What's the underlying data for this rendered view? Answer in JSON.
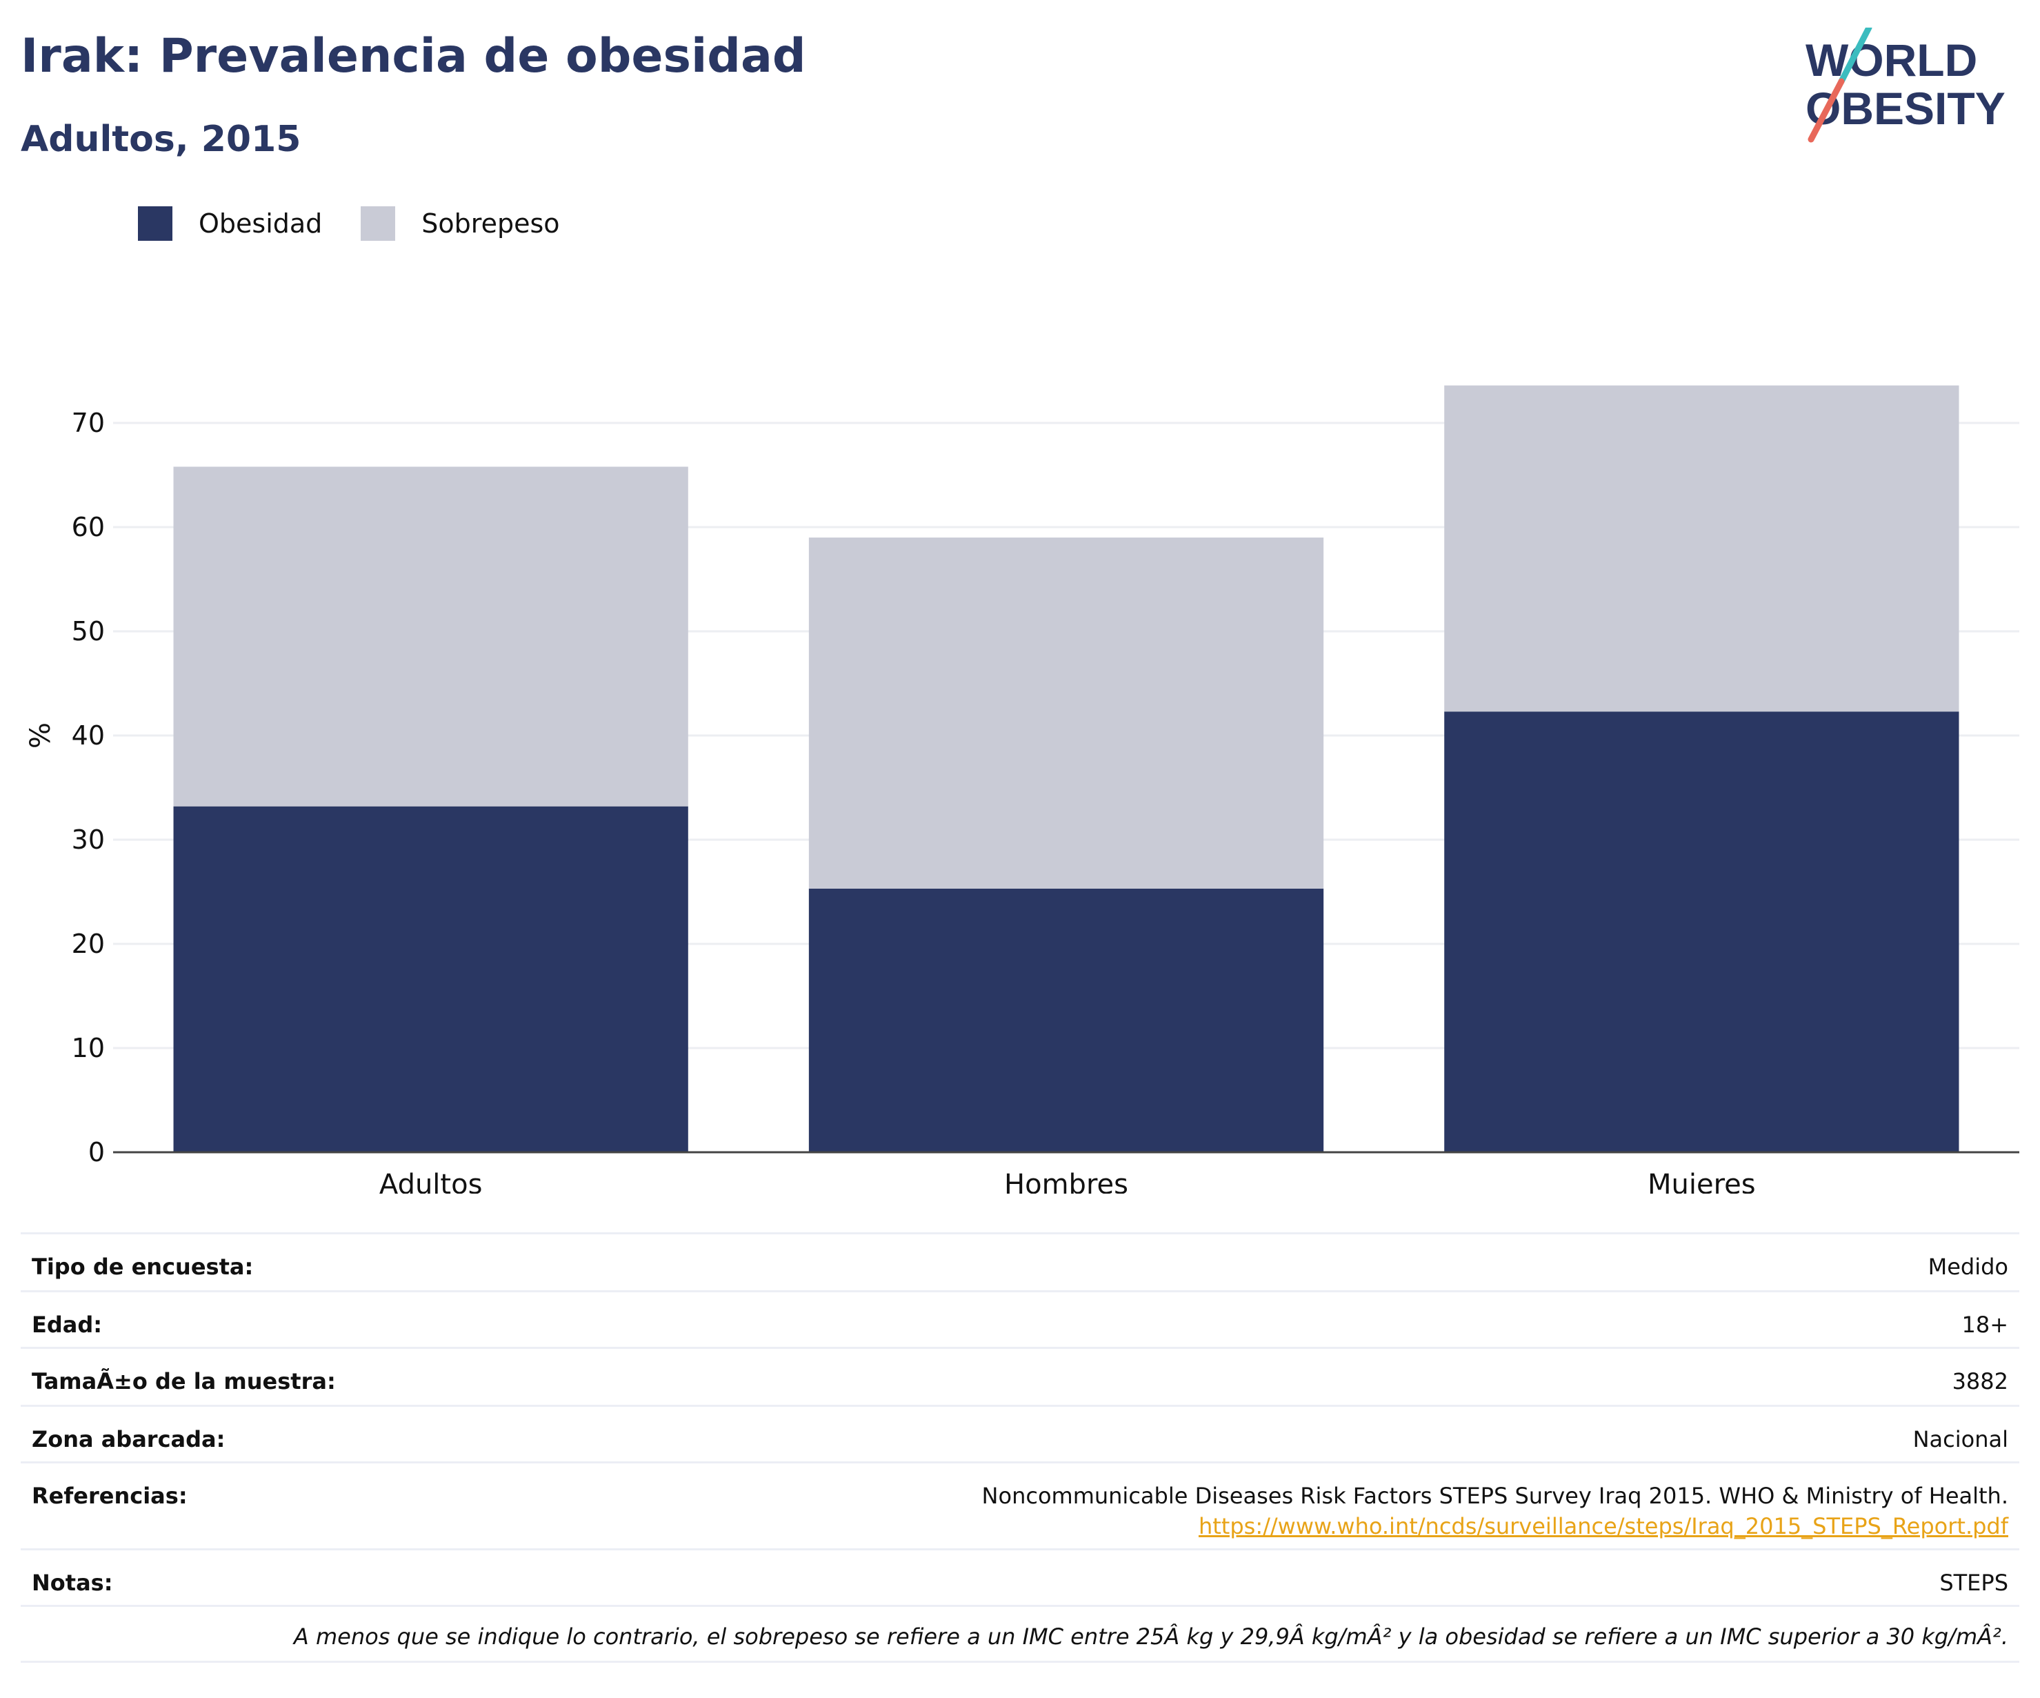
{
  "title": "Irak: Prevalencia de obesidad",
  "subtitle": "Adultos, 2015",
  "logo": {
    "line1": "WORLD",
    "line2": "OBESITY"
  },
  "colors": {
    "obesity": "#2a3763",
    "overweight": "#c9cbd6",
    "title": "#2a3763",
    "link": "#e8a317",
    "logo_teal": "#3bbcbf",
    "logo_red": "#e8685a"
  },
  "legend": [
    {
      "label": "Obesidad",
      "color": "#2a3763"
    },
    {
      "label": "Sobrepeso",
      "color": "#c9cbd6"
    }
  ],
  "chart_data": {
    "type": "bar",
    "stacked": true,
    "categories": [
      "Adultos",
      "Hombres",
      "Mujeres"
    ],
    "series": [
      {
        "name": "Obesidad",
        "values": [
          33.2,
          25.3,
          42.3
        ]
      },
      {
        "name": "Sobrepeso",
        "values": [
          32.6,
          33.7,
          31.3
        ]
      }
    ],
    "ylabel": "%",
    "yticks": [
      0,
      10,
      20,
      30,
      40,
      50,
      60,
      70
    ],
    "ylim": [
      0,
      74
    ],
    "grid": true,
    "legend_position": "top-left"
  },
  "info": {
    "rows": [
      {
        "label": "Tipo de encuesta:",
        "value": "Medido"
      },
      {
        "label": "Edad:",
        "value": "18+"
      },
      {
        "label": "TamaÃ±o de la muestra:",
        "value": "3882"
      },
      {
        "label": "Zona abarcada:",
        "value": "Nacional"
      }
    ],
    "references_label": "Referencias:",
    "references_text": "Noncommunicable Diseases Risk Factors STEPS Survey Iraq 2015. WHO & Ministry of Health.",
    "references_link": "https://www.who.int/ncds/surveillance/steps/Iraq_2015_STEPS_Report.pdf",
    "notes_label": "Notas:",
    "notes_value": "STEPS",
    "footnote": "A menos que se indique lo contrario, el sobrepeso se refiere a un IMC entre 25Â kg y 29,9Â kg/mÂ² y la obesidad se refiere a un IMC superior a 30 kg/mÂ²."
  }
}
